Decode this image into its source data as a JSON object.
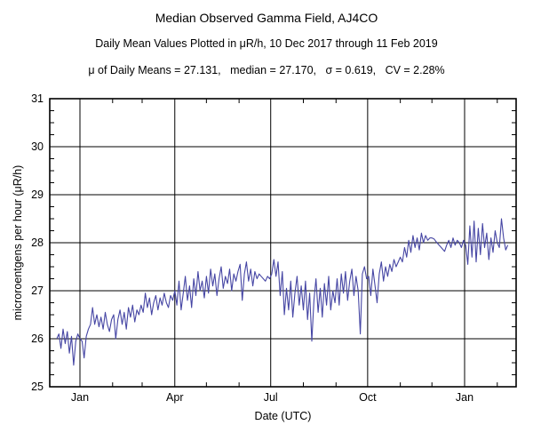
{
  "header": {
    "title": "Median Observed Gamma Field, AJ4CO",
    "subtitle": "Daily Mean Values Plotted in μR/h, 10 Dec 2017 through 11 Feb 2019",
    "stats": "μ of Daily Means = 27.131,   median = 27.170,   σ = 0.619,   CV = 2.28%"
  },
  "chart_data": {
    "type": "line",
    "title": "Median Observed Gamma Field, AJ4CO",
    "subtitle": "Daily Mean Values Plotted in μR/h, 10 Dec 2017 through 11 Feb 2019",
    "xlabel": "Date (UTC)",
    "ylabel": "microroentgens per hour (μR/h)",
    "ylim": [
      25,
      31
    ],
    "y_major_ticks": [
      25,
      26,
      27,
      28,
      29,
      30,
      31
    ],
    "y_minor_step": 0.25,
    "grid": true,
    "legend": "none",
    "line_color": "#4646a4",
    "frame_color": "#000000",
    "stats": {
      "mean_of_daily_means": 27.131,
      "median": 27.17,
      "sigma": 0.619,
      "cv_percent": 2.28
    },
    "start_date": "2017-12-10",
    "end_date": "2019-02-11",
    "sample_step_days": 2,
    "x_major_tick_labels": [
      "Jan",
      "Apr",
      "Jul",
      "Oct",
      "Jan"
    ],
    "x_major_tick_days": [
      22,
      112,
      203,
      295,
      387
    ],
    "x_minor_tick_days": [
      53,
      81,
      142,
      173,
      234,
      265,
      326,
      356,
      418
    ],
    "values": [
      26.0,
      26.1,
      25.8,
      26.2,
      25.9,
      26.15,
      25.7,
      26.05,
      25.45,
      25.95,
      26.1,
      26.0,
      25.95,
      25.6,
      26.05,
      26.2,
      26.3,
      26.65,
      26.3,
      26.5,
      26.25,
      26.45,
      26.2,
      26.55,
      26.3,
      26.15,
      26.4,
      26.5,
      26.0,
      26.4,
      26.6,
      26.3,
      26.55,
      26.2,
      26.65,
      26.45,
      26.7,
      26.35,
      26.6,
      26.5,
      26.7,
      26.55,
      26.95,
      26.65,
      26.85,
      26.5,
      26.75,
      26.9,
      26.6,
      26.85,
      26.7,
      26.95,
      26.75,
      26.65,
      26.9,
      26.8,
      27.0,
      26.7,
      27.2,
      26.6,
      26.95,
      27.3,
      26.8,
      27.1,
      26.65,
      27.25,
      26.9,
      27.4,
      27.0,
      27.2,
      26.85,
      27.3,
      26.95,
      27.45,
      27.1,
      27.35,
      26.9,
      27.25,
      27.5,
      27.05,
      27.3,
      27.15,
      27.45,
      27.0,
      27.35,
      27.2,
      27.4,
      27.55,
      26.8,
      27.35,
      27.6,
      27.2,
      27.45,
      27.1,
      27.4,
      27.25,
      27.35,
      27.3,
      27.25,
      27.2,
      27.3,
      27.25,
      27.35,
      27.65,
      27.3,
      27.6,
      26.9,
      27.4,
      26.5,
      27.05,
      26.6,
      27.2,
      26.45,
      26.95,
      27.3,
      26.7,
      27.1,
      26.6,
      27.2,
      26.4,
      26.95,
      25.95,
      26.8,
      27.25,
      26.55,
      27.05,
      26.45,
      27.15,
      26.7,
      27.3,
      26.6,
      27.0,
      26.75,
      27.25,
      26.7,
      27.35,
      26.95,
      27.4,
      26.8,
      27.2,
      27.45,
      26.9,
      27.3,
      27.0,
      26.1,
      27.35,
      27.5,
      27.25,
      27.3,
      26.9,
      27.45,
      27.1,
      26.75,
      27.35,
      27.6,
      27.2,
      27.5,
      27.3,
      27.55,
      27.4,
      27.65,
      27.5,
      27.6,
      27.7,
      27.6,
      27.9,
      27.7,
      28.05,
      27.8,
      28.15,
      27.9,
      28.1,
      27.85,
      28.2,
      28.0,
      28.15,
      28.05,
      28.1,
      28.1,
      28.08,
      28.02,
      27.97,
      27.92,
      27.87,
      27.82,
      27.95,
      28.05,
      27.9,
      28.1,
      27.95,
      28.05,
      28.0,
      27.9,
      28.05,
      27.95,
      27.55,
      28.35,
      27.7,
      28.45,
      27.6,
      28.3,
      27.75,
      28.4,
      27.9,
      28.2,
      27.65,
      28.1,
      27.8,
      28.25,
      28.0,
      27.9,
      28.5,
      28.1,
      27.85,
      27.95
    ]
  }
}
